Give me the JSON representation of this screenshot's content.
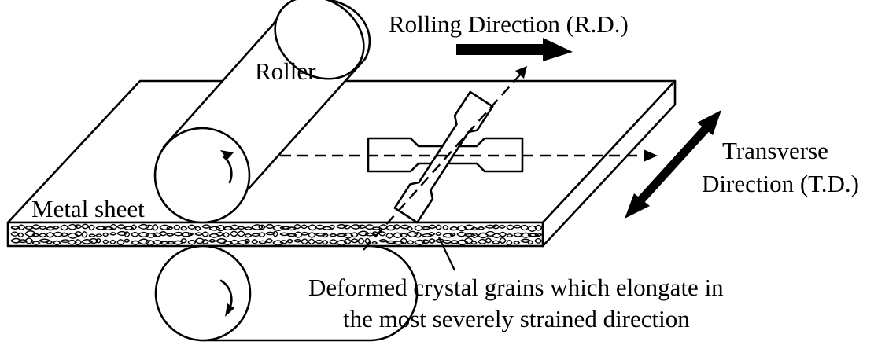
{
  "labels": {
    "rolling_direction": "Rolling Direction (R.D.)",
    "roller": "Roller",
    "transverse_line1": "Transverse",
    "transverse_line2": "Direction (T.D.)",
    "metal_sheet": "Metal sheet",
    "grains_line1": "Deformed crystal grains which elongate in",
    "grains_line2": "the most severely strained direction"
  },
  "colors": {
    "ink": "#000000",
    "paper": "#ffffff"
  }
}
